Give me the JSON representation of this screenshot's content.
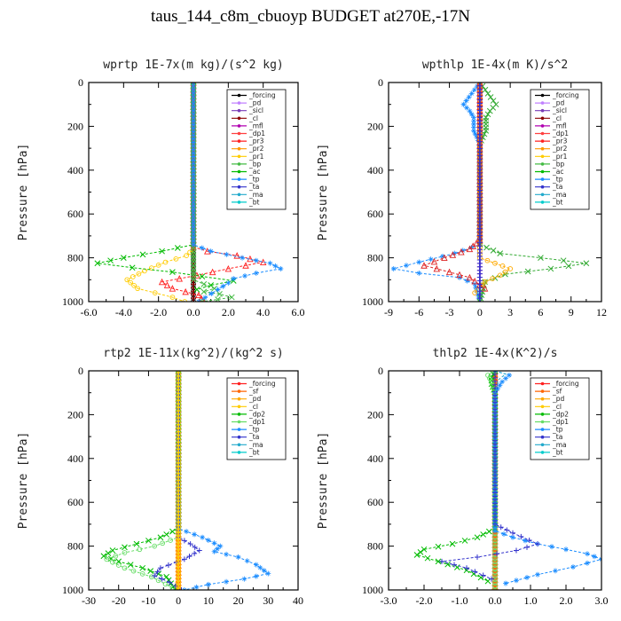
{
  "figure_title": "taus_144_c8m_cbuoyp  BUDGET at270E,-17N",
  "chart_data": [
    {
      "type": "line",
      "title": "wprtp  1E-7x(m kg)/(s^2 kg)",
      "ylabel": "Pressure [hPa]",
      "xlim": [
        -6.0,
        6.0
      ],
      "ylim": [
        1000,
        0
      ],
      "xticks": [
        "-6.0",
        "-4.0",
        "-2.0",
        "0.0",
        "2.0",
        "4.0",
        "6.0"
      ],
      "xtick_values": [
        -6,
        -4,
        -2,
        0,
        2,
        4,
        6
      ],
      "yticks": [
        "0",
        "200",
        "400",
        "600",
        "800",
        "1000"
      ],
      "ytick_values": [
        0,
        200,
        400,
        600,
        800,
        1000
      ],
      "legend": [
        "_forcing",
        "_pd",
        "_sicl",
        "_cl",
        "_mfl",
        "_dp1",
        "_pr3",
        "_pr2",
        "_pr1",
        "_bp",
        "_ac",
        "_tp",
        "_ta",
        "_ma",
        "_bt"
      ],
      "series": [
        {
          "name": "_forcing",
          "color": "#000000",
          "marker": "circle",
          "x": [
            0,
            0
          ],
          "y": [
            0,
            1000
          ]
        },
        {
          "name": "_cl",
          "color": "#8b0000",
          "marker": "plus",
          "x": [
            0,
            0
          ],
          "y": [
            0,
            1000
          ]
        },
        {
          "name": "_pr1",
          "color": "#ffcc00",
          "marker": "circle",
          "x": [
            0,
            0,
            -0.4,
            -1.6,
            -2.8,
            -3.8,
            -3.2,
            -2.2,
            -1.2,
            -0.5
          ],
          "y": [
            0,
            760,
            790,
            820,
            860,
            900,
            940,
            960,
            980,
            1000
          ]
        },
        {
          "name": "_pr3",
          "color": "#ff2020",
          "marker": "triangle",
          "x": [
            0,
            0,
            0.8,
            2.5,
            4.0,
            2.0,
            0.2,
            -1.8,
            -1.2,
            0.3,
            0.6
          ],
          "y": [
            0,
            750,
            770,
            790,
            820,
            850,
            880,
            910,
            940,
            970,
            1000
          ]
        },
        {
          "name": "_ac",
          "color": "#00bb00",
          "marker": "cross",
          "x": [
            0,
            0,
            -1.8,
            -4.0,
            -5.5,
            -3.5,
            -1.2,
            0.5,
            2.3,
            1.0,
            0.2
          ],
          "y": [
            0,
            740,
            770,
            800,
            825,
            845,
            865,
            885,
            905,
            925,
            945
          ]
        },
        {
          "name": "_bp",
          "color": "#44bb44",
          "marker": "cross",
          "x": [
            0,
            0,
            0.6,
            1.2,
            0.6,
            1.5,
            2.2,
            1.4,
            0.5
          ],
          "y": [
            0,
            900,
            920,
            940,
            955,
            965,
            980,
            990,
            1000
          ]
        },
        {
          "name": "_tp",
          "color": "#1a8cff",
          "marker": "star",
          "x": [
            0,
            0,
            1.0,
            2.8,
            4.4,
            5.0,
            3.6,
            2.3,
            2.0,
            1.4,
            0.3
          ],
          "y": [
            0,
            740,
            770,
            800,
            825,
            850,
            870,
            895,
            915,
            945,
            1000
          ]
        }
      ]
    },
    {
      "type": "line",
      "title": "wpthlp  1E-4x(m K)/s^2",
      "ylabel": "Pressure [hPa]",
      "xlim": [
        -9,
        12
      ],
      "ylim": [
        1000,
        0
      ],
      "xticks": [
        "-9",
        "-6",
        "-3",
        "0",
        "3",
        "6",
        "9",
        "12"
      ],
      "xtick_values": [
        -9,
        -6,
        -3,
        0,
        3,
        6,
        9,
        12
      ],
      "yticks": [
        "0",
        "200",
        "400",
        "600",
        "800",
        "1000"
      ],
      "ytick_values": [
        0,
        200,
        400,
        600,
        800,
        1000
      ],
      "legend": [
        "_forcing",
        "_pd",
        "_sicl",
        "_cl",
        "_mfl",
        "_dp1",
        "_pr3",
        "_pr2",
        "_pr1",
        "_bp",
        "_ac",
        "_tp",
        "_ta",
        "_ma",
        "_bt"
      ],
      "series": [
        {
          "name": "_cl",
          "color": "#b000b0",
          "marker": "plus",
          "x": [
            0,
            0
          ],
          "y": [
            0,
            1000
          ]
        },
        {
          "name": "_tp",
          "color": "#1a8cff",
          "marker": "star",
          "x": [
            0,
            -0.8,
            -1.6,
            -1.0,
            -0.6,
            -0.6,
            0,
            0,
            -2.5,
            -6.0,
            -8.5,
            -6.0,
            -2.0,
            -0.5,
            0
          ],
          "y": [
            0,
            50,
            100,
            130,
            160,
            220,
            280,
            740,
            780,
            820,
            850,
            870,
            890,
            920,
            1000
          ]
        },
        {
          "name": "_ac",
          "color": "#33aa33",
          "marker": "cross",
          "x": [
            0,
            0.8,
            1.6,
            1.0,
            0.6,
            0.6,
            0,
            0,
            2.0,
            6.0,
            10.5,
            7.0,
            2.5,
            0.5,
            0
          ],
          "y": [
            0,
            50,
            100,
            130,
            160,
            220,
            280,
            740,
            780,
            800,
            825,
            850,
            875,
            910,
            1000
          ]
        },
        {
          "name": "_pr1",
          "color": "#ffaa00",
          "marker": "circle",
          "x": [
            0,
            0,
            1.5,
            3.0,
            2.0,
            0.5,
            -0.5
          ],
          "y": [
            0,
            800,
            825,
            850,
            880,
            910,
            960
          ]
        },
        {
          "name": "_pr3",
          "color": "#dd2222",
          "marker": "triangle",
          "x": [
            0,
            0,
            -1.0,
            -3.5,
            -5.5,
            -3.0,
            -1.0,
            0.5
          ],
          "y": [
            0,
            720,
            760,
            800,
            835,
            865,
            890,
            940
          ]
        },
        {
          "name": "_ta",
          "color": "#3333cc",
          "marker": "plus",
          "x": [
            0,
            0
          ],
          "y": [
            0,
            1000
          ]
        }
      ]
    },
    {
      "type": "line",
      "title": "rtp2  1E-11x(kg^2)/(kg^2 s)",
      "ylabel": "Pressure [hPa]",
      "xlim": [
        -30,
        40
      ],
      "ylim": [
        1000,
        0
      ],
      "xticks": [
        "-30",
        "-20",
        "-10",
        "0",
        "10",
        "20",
        "30",
        "40"
      ],
      "xtick_values": [
        -30,
        -20,
        -10,
        0,
        10,
        20,
        30,
        40
      ],
      "yticks": [
        "0",
        "200",
        "400",
        "600",
        "800",
        "1000"
      ],
      "ytick_values": [
        0,
        200,
        400,
        600,
        800,
        1000
      ],
      "legend": [
        "_forcing",
        "_sf",
        "_pd",
        "_cl",
        "_dp2",
        "_dp1",
        "_tp",
        "_ta",
        "_ma",
        "_bt"
      ],
      "series": [
        {
          "name": "_forcing",
          "color": "#ff2020",
          "marker": "circle",
          "x": [
            0,
            0
          ],
          "y": [
            0,
            1000
          ]
        },
        {
          "name": "_sf",
          "color": "#ff6600",
          "marker": "triangle",
          "x": [
            0,
            0
          ],
          "y": [
            0,
            1000
          ]
        },
        {
          "name": "_dp2",
          "color": "#00bb00",
          "marker": "cross",
          "x": [
            0,
            0,
            -6.0,
            -14.0,
            -22.0,
            -25.0,
            -20.0,
            -12.0,
            -4.0,
            -1.0
          ],
          "y": [
            0,
            720,
            760,
            790,
            820,
            845,
            870,
            900,
            940,
            1000
          ]
        },
        {
          "name": "_dp1",
          "color": "#66dd66",
          "marker": "circle",
          "x": [
            0,
            0,
            -8.0,
            -18.0,
            -24.0,
            -18.0,
            -9.0,
            -2.0
          ],
          "y": [
            0,
            760,
            800,
            830,
            860,
            900,
            940,
            990
          ]
        },
        {
          "name": "_tp",
          "color": "#1a8cff",
          "marker": "star",
          "x": [
            0,
            0,
            8.0,
            14.0,
            12.0,
            20.0,
            26.0,
            30.0,
            22.0,
            10.0,
            2.0
          ],
          "y": [
            0,
            720,
            760,
            800,
            825,
            850,
            885,
            925,
            950,
            975,
            1000
          ]
        },
        {
          "name": "_ta",
          "color": "#3333cc",
          "marker": "plus",
          "x": [
            0,
            0,
            4.0,
            7.0,
            2.0,
            -6.0,
            -8.0,
            -3.0,
            1.0
          ],
          "y": [
            0,
            760,
            790,
            820,
            860,
            900,
            935,
            965,
            1000
          ]
        },
        {
          "name": "_cl",
          "color": "#ffcc00",
          "marker": "circle",
          "x": [
            0,
            0
          ],
          "y": [
            0,
            1000
          ]
        }
      ]
    },
    {
      "type": "line",
      "title": "thlp2  1E-4x(K^2)/s",
      "ylabel": "Pressure [hPa]",
      "xlim": [
        -3.0,
        3.0
      ],
      "ylim": [
        1000,
        0
      ],
      "xticks": [
        "-3.0",
        "-2.0",
        "-1.0",
        "0.0",
        "1.0",
        "2.0",
        "3.0"
      ],
      "xtick_values": [
        -3,
        -2,
        -1,
        0,
        1,
        2,
        3
      ],
      "yticks": [
        "0",
        "200",
        "400",
        "600",
        "800",
        "1000"
      ],
      "ytick_values": [
        0,
        200,
        400,
        600,
        800,
        1000
      ],
      "legend": [
        "_forcing",
        "_sf",
        "_pd",
        "_cl",
        "_dp2",
        "_dp1",
        "_tp",
        "_ta",
        "_ma",
        "_bt"
      ],
      "series": [
        {
          "name": "_forcing",
          "color": "#ff2020",
          "marker": "circle",
          "x": [
            0,
            0
          ],
          "y": [
            0,
            1000
          ]
        },
        {
          "name": "_sf",
          "color": "#ff6600",
          "marker": "triangle",
          "x": [
            0,
            0
          ],
          "y": [
            0,
            1000
          ]
        },
        {
          "name": "_dp2",
          "color": "#00bb00",
          "marker": "cross",
          "x": [
            0,
            -0.1,
            -0.1,
            0,
            0,
            -0.5,
            -1.2,
            -2.0,
            -2.2,
            -1.6,
            -0.8,
            -0.2
          ],
          "y": [
            0,
            30,
            60,
            100,
            720,
            760,
            790,
            815,
            840,
            870,
            910,
            960
          ]
        },
        {
          "name": "_dp1",
          "color": "#66dd66",
          "marker": "circle",
          "x": [
            0,
            -0.2,
            -0.1,
            0,
            0
          ],
          "y": [
            0,
            20,
            50,
            100,
            1000
          ]
        },
        {
          "name": "_tp",
          "color": "#1a8cff",
          "marker": "star",
          "x": [
            0,
            0.4,
            0.2,
            0,
            0,
            0.5,
            1.2,
            2.0,
            2.6,
            3.0,
            2.2,
            1.2,
            0.3
          ],
          "y": [
            0,
            20,
            50,
            100,
            730,
            760,
            790,
            815,
            835,
            860,
            895,
            930,
            970
          ]
        },
        {
          "name": "_ta",
          "color": "#3333cc",
          "marker": "plus",
          "x": [
            0,
            0,
            0.5,
            1.2,
            0.6,
            -0.5,
            -1.5,
            -0.8,
            -0.1
          ],
          "y": [
            0,
            700,
            740,
            790,
            820,
            850,
            870,
            900,
            950
          ]
        },
        {
          "name": "_ma",
          "color": "#22aacc",
          "marker": "none",
          "x": [
            0,
            0.3,
            0.1,
            0
          ],
          "y": [
            0,
            15,
            40,
            100
          ]
        }
      ]
    }
  ]
}
